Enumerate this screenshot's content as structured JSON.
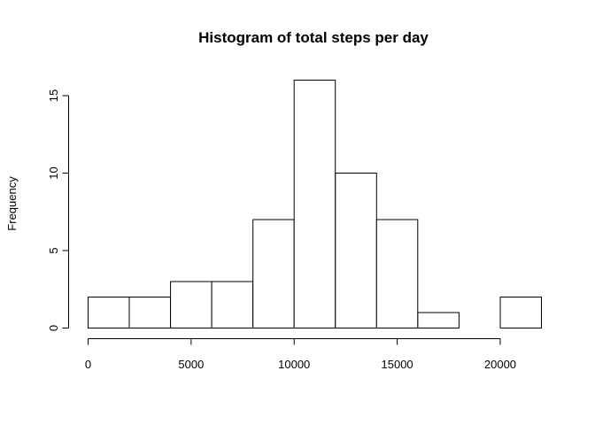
{
  "chart_data": {
    "type": "bar",
    "title": "Histogram of total steps per day",
    "xlabel": "",
    "ylabel": "Frequency",
    "bin_edges": [
      0,
      2000,
      4000,
      6000,
      8000,
      10000,
      12000,
      14000,
      16000,
      18000,
      20000,
      22000
    ],
    "values": [
      2,
      2,
      3,
      3,
      7,
      16,
      10,
      7,
      1,
      0,
      2
    ],
    "xlim": [
      0,
      22000
    ],
    "ylim": [
      0,
      16
    ],
    "x_ticks": [
      0,
      5000,
      10000,
      15000,
      20000
    ],
    "x_tick_labels": [
      "0",
      "5000",
      "10000",
      "15000",
      "20000"
    ],
    "y_ticks": [
      0,
      5,
      10,
      15
    ],
    "y_tick_labels": [
      "0",
      "5",
      "10",
      "15"
    ],
    "grid": false,
    "legend": "none"
  }
}
